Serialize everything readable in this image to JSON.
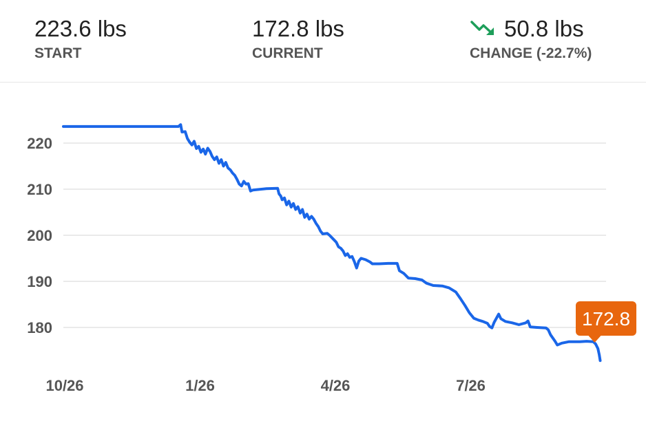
{
  "stats": {
    "start": {
      "value": "223.6 lbs",
      "label": "START"
    },
    "current": {
      "value": "172.8 lbs",
      "label": "CURRENT"
    },
    "change": {
      "value": "50.8 lbs",
      "label": "CHANGE (-22.7%)",
      "icon": "trending-down-icon"
    }
  },
  "colors": {
    "line": "#1a66e8",
    "badge": "#e8660e",
    "trend_down": "#1e9e5a",
    "grid": "#e3e3e3"
  },
  "chart_data": {
    "type": "line",
    "title": "",
    "xlabel": "",
    "ylabel": "",
    "ylim": [
      174,
      226
    ],
    "x_ticks": [
      "10/26",
      "1/26",
      "4/26",
      "7/26"
    ],
    "x_tick_values": [
      0,
      3,
      6,
      9
    ],
    "y_ticks": [
      180,
      190,
      200,
      210,
      220
    ],
    "grid": true,
    "current_label": "172.8",
    "series": [
      {
        "points": [
          [
            0.0,
            223.6
          ],
          [
            2.0,
            223.6
          ],
          [
            2.55,
            223.6
          ],
          [
            2.6,
            224.0
          ],
          [
            2.63,
            222.4
          ],
          [
            2.7,
            222.5
          ],
          [
            2.75,
            221.0
          ],
          [
            2.8,
            220.2
          ],
          [
            2.85,
            219.6
          ],
          [
            2.9,
            220.4
          ],
          [
            2.95,
            218.8
          ],
          [
            3.0,
            219.3
          ],
          [
            3.05,
            218.0
          ],
          [
            3.1,
            218.7
          ],
          [
            3.15,
            217.6
          ],
          [
            3.2,
            218.9
          ],
          [
            3.25,
            218.2
          ],
          [
            3.3,
            217.1
          ],
          [
            3.35,
            216.4
          ],
          [
            3.4,
            217.0
          ],
          [
            3.45,
            215.6
          ],
          [
            3.5,
            216.4
          ],
          [
            3.55,
            215.0
          ],
          [
            3.6,
            215.8
          ],
          [
            3.65,
            214.6
          ],
          [
            3.7,
            214.2
          ],
          [
            3.75,
            213.5
          ],
          [
            3.8,
            213.0
          ],
          [
            3.85,
            212.1
          ],
          [
            3.9,
            211.1
          ],
          [
            3.95,
            210.7
          ],
          [
            4.0,
            211.7
          ],
          [
            4.05,
            211.1
          ],
          [
            4.1,
            211.2
          ],
          [
            4.15,
            209.6
          ],
          [
            4.2,
            209.8
          ],
          [
            4.5,
            210.1
          ],
          [
            4.75,
            210.2
          ],
          [
            4.78,
            209.0
          ],
          [
            4.82,
            208.5
          ],
          [
            4.85,
            207.7
          ],
          [
            4.9,
            208.1
          ],
          [
            4.95,
            206.6
          ],
          [
            5.0,
            207.4
          ],
          [
            5.05,
            206.1
          ],
          [
            5.1,
            206.9
          ],
          [
            5.15,
            205.6
          ],
          [
            5.2,
            206.2
          ],
          [
            5.25,
            204.8
          ],
          [
            5.3,
            205.6
          ],
          [
            5.35,
            203.9
          ],
          [
            5.4,
            204.6
          ],
          [
            5.45,
            203.5
          ],
          [
            5.5,
            204.1
          ],
          [
            5.55,
            203.5
          ],
          [
            5.6,
            202.6
          ],
          [
            5.65,
            201.9
          ],
          [
            5.7,
            200.9
          ],
          [
            5.75,
            200.3
          ],
          [
            5.85,
            200.4
          ],
          [
            5.9,
            200.0
          ],
          [
            6.0,
            199.0
          ],
          [
            6.05,
            198.5
          ],
          [
            6.1,
            197.5
          ],
          [
            6.15,
            197.2
          ],
          [
            6.2,
            196.6
          ],
          [
            6.25,
            195.6
          ],
          [
            6.3,
            196.0
          ],
          [
            6.35,
            195.2
          ],
          [
            6.4,
            195.4
          ],
          [
            6.45,
            194.3
          ],
          [
            6.5,
            192.9
          ],
          [
            6.55,
            194.4
          ],
          [
            6.6,
            195.0
          ],
          [
            6.7,
            194.7
          ],
          [
            6.8,
            194.2
          ],
          [
            6.85,
            193.8
          ],
          [
            7.0,
            193.8
          ],
          [
            7.2,
            193.9
          ],
          [
            7.4,
            193.9
          ],
          [
            7.45,
            192.3
          ],
          [
            7.55,
            191.7
          ],
          [
            7.65,
            190.7
          ],
          [
            7.8,
            190.6
          ],
          [
            7.95,
            190.3
          ],
          [
            8.05,
            189.6
          ],
          [
            8.2,
            189.1
          ],
          [
            8.4,
            189.0
          ],
          [
            8.55,
            188.6
          ],
          [
            8.7,
            187.7
          ],
          [
            8.8,
            186.3
          ],
          [
            8.9,
            184.8
          ],
          [
            9.0,
            183.2
          ],
          [
            9.1,
            182.0
          ],
          [
            9.2,
            181.6
          ],
          [
            9.3,
            181.3
          ],
          [
            9.4,
            180.9
          ],
          [
            9.45,
            180.2
          ],
          [
            9.5,
            179.9
          ],
          [
            9.55,
            181.1
          ],
          [
            9.65,
            182.9
          ],
          [
            9.7,
            181.9
          ],
          [
            9.8,
            181.3
          ],
          [
            9.95,
            181.0
          ],
          [
            10.1,
            180.6
          ],
          [
            10.25,
            181.0
          ],
          [
            10.3,
            181.4
          ],
          [
            10.35,
            180.1
          ],
          [
            10.5,
            180.0
          ],
          [
            10.7,
            179.9
          ],
          [
            10.75,
            179.5
          ],
          [
            10.8,
            178.4
          ],
          [
            10.9,
            177.0
          ],
          [
            10.95,
            176.2
          ],
          [
            11.05,
            176.6
          ],
          [
            11.2,
            176.9
          ],
          [
            11.45,
            176.9
          ],
          [
            11.6,
            177.0
          ],
          [
            11.75,
            176.9
          ],
          [
            11.8,
            176.4
          ],
          [
            11.85,
            175.4
          ],
          [
            11.88,
            174.1
          ],
          [
            11.9,
            172.8
          ]
        ]
      }
    ]
  }
}
